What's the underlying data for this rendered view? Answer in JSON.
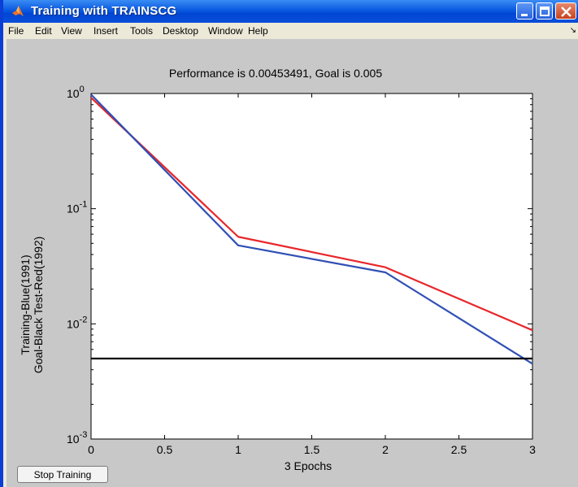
{
  "window": {
    "title": "Training with TRAINSCG",
    "menu": [
      "File",
      "Edit",
      "View",
      "Insert",
      "Tools",
      "Desktop",
      "Window",
      "Help"
    ],
    "menu_overflow_glyph": "↘"
  },
  "stop_button_label": "Stop Training",
  "chart_data": {
    "type": "line",
    "title": "Performance is 0.00453491, Goal is 0.005",
    "xlabel": "3 Epochs",
    "ylabel_lines": [
      "Training-Blue(1991)",
      "Goal-Black  Test-Red(1992)"
    ],
    "xlim": [
      0,
      3
    ],
    "ylim": [
      0.001,
      1
    ],
    "yscale": "log",
    "x_ticks": [
      0,
      0.5,
      1,
      1.5,
      2,
      2.5,
      3
    ],
    "x_tick_labels": [
      "0",
      "0.5",
      "1",
      "1.5",
      "2",
      "2.5",
      "3"
    ],
    "y_ticks": [
      {
        "value": 1,
        "base": "10",
        "exp": "0"
      },
      {
        "value": 0.1,
        "base": "10",
        "exp": "-1"
      },
      {
        "value": 0.01,
        "base": "10",
        "exp": "-2"
      },
      {
        "value": 0.001,
        "base": "10",
        "exp": "-3"
      }
    ],
    "grid": false,
    "series": [
      {
        "color": "#e8262a",
        "x": [
          0,
          1,
          2,
          3
        ],
        "y": [
          0.92,
          0.057,
          0.031,
          0.0088
        ]
      },
      {
        "color": "#3050b4",
        "x": [
          0,
          1,
          2,
          3
        ],
        "y": [
          0.98,
          0.048,
          0.028,
          0.0045
        ]
      },
      {
        "color": "#000000",
        "x": [
          0,
          3
        ],
        "y": [
          0.005,
          0.005
        ]
      }
    ]
  }
}
